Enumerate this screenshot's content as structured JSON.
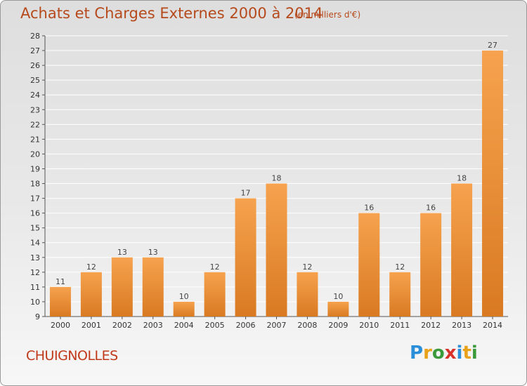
{
  "title": "Achats et Charges Externes 2000 à 2014",
  "subtitle": "(en milliers d'€)",
  "commune": "CHUIGNOLLES",
  "logo": {
    "text": "Proxiti",
    "letters": [
      {
        "ch": "P",
        "color": "#2a8fd8"
      },
      {
        "ch": "r",
        "color": "#e8a21a"
      },
      {
        "ch": "o",
        "color": "#3b9a3b"
      },
      {
        "ch": "x",
        "color": "#d8322a"
      },
      {
        "ch": "i",
        "color": "#2a8fd8"
      },
      {
        "ch": "t",
        "color": "#e8a21a"
      },
      {
        "ch": "i",
        "color": "#3b9a3b"
      }
    ]
  },
  "colors": {
    "bar_top": "#f6a24e",
    "bar_bottom": "#d97a22",
    "title": "#b64a1c",
    "commune": "#c0391b",
    "grid": "#ffffff"
  },
  "chart_data": {
    "type": "bar",
    "categories": [
      "2000",
      "2001",
      "2002",
      "2003",
      "2004",
      "2005",
      "2006",
      "2007",
      "2008",
      "2009",
      "2010",
      "2011",
      "2012",
      "2013",
      "2014"
    ],
    "values": [
      11,
      12,
      13,
      13,
      10,
      12,
      17,
      18,
      12,
      10,
      16,
      12,
      16,
      18,
      27
    ],
    "data_labels": [
      "11",
      "12",
      "13",
      "13",
      "10",
      "12",
      "17",
      "18",
      "12",
      "10",
      "16",
      "12",
      "16",
      "18",
      "27"
    ],
    "ylim": [
      9,
      28
    ],
    "yticks": [
      9,
      10,
      11,
      12,
      13,
      14,
      15,
      16,
      17,
      18,
      19,
      20,
      21,
      22,
      23,
      24,
      25,
      26,
      27,
      28
    ],
    "grid": true
  }
}
